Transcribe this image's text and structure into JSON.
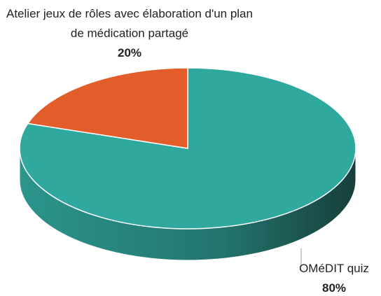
{
  "chart_data": {
    "type": "pie",
    "categories": [
      "Atelier jeux de rôles avec élaboration d'un plan de médication partagé",
      "OMéDIT quiz"
    ],
    "values": [
      20,
      80
    ],
    "value_labels": [
      "20%",
      "80%"
    ],
    "colors": [
      "#e35d2a",
      "#2fa89e"
    ]
  }
}
